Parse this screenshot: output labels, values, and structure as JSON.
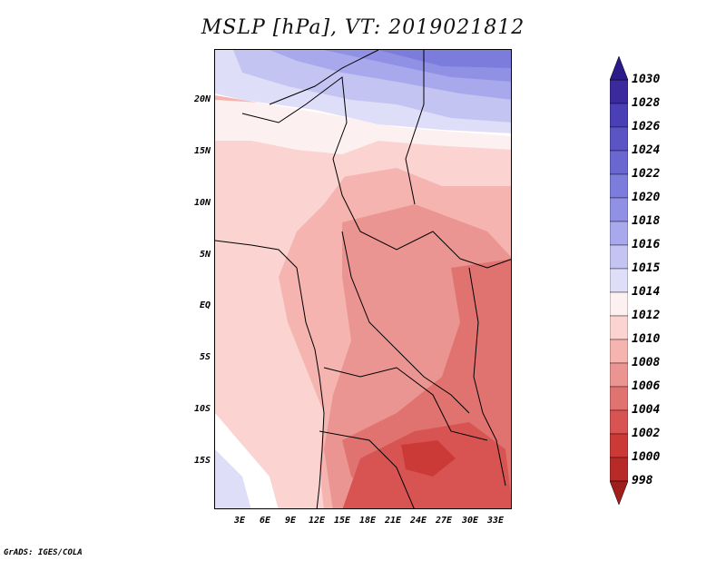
{
  "title": "MSLP [hPa], VT: 2019021812",
  "credit": "GrADS: IGES/COLA",
  "map": {
    "lat_ticks": [
      "20N",
      "15N",
      "10N",
      "5N",
      "EQ",
      "5S",
      "10S",
      "15S"
    ],
    "lon_ticks": [
      "3E",
      "6E",
      "9E",
      "12E",
      "15E",
      "18E",
      "21E",
      "24E",
      "27E",
      "30E",
      "33E"
    ]
  },
  "colorbar": {
    "labels": [
      "1030",
      "1028",
      "1026",
      "1024",
      "1022",
      "1020",
      "1018",
      "1016",
      "1015",
      "1014",
      "1012",
      "1010",
      "1008",
      "1006",
      "1004",
      "1002",
      "1000",
      "998"
    ],
    "colors": [
      "#3a2a9e",
      "#4a3fb4",
      "#5a54c4",
      "#6a68d0",
      "#7c7cdc",
      "#9090e4",
      "#a8a8ec",
      "#c4c4f2",
      "#dedef8",
      "#fdf0f0",
      "#fbd4d2",
      "#f5b4b0",
      "#ea9592",
      "#e07370",
      "#d85452",
      "#cc3a38",
      "#b82a28"
    ]
  }
}
